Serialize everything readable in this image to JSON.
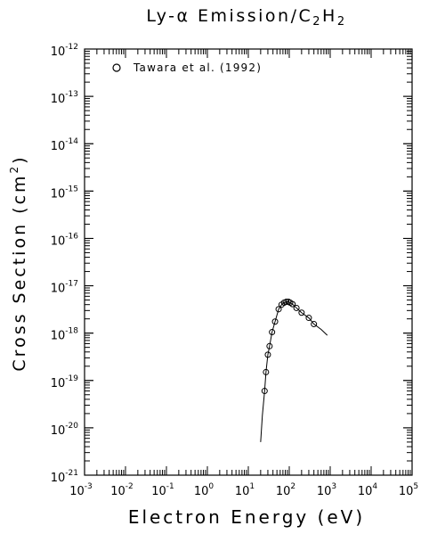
{
  "chart_data": {
    "type": "scatter",
    "title": {
      "base": "Ly-α Emission/C",
      "sub1": "2",
      "mid": "H",
      "sub2": "2"
    },
    "xlabel": "Electron Energy (eV)",
    "ylabel": {
      "text": "Cross Section (cm",
      "exp": "2",
      "close": ")"
    },
    "x_scale": "log",
    "y_scale": "log",
    "xlim": [
      0.001,
      100000
    ],
    "ylim": [
      1e-21,
      1e-12
    ],
    "x_ticks": [
      {
        "base": "10",
        "exp": "-3",
        "value": 0.001
      },
      {
        "base": "10",
        "exp": "-2",
        "value": 0.01
      },
      {
        "base": "10",
        "exp": "-1",
        "value": 0.1
      },
      {
        "base": "10",
        "exp": "0",
        "value": 1
      },
      {
        "base": "10",
        "exp": "1",
        "value": 10
      },
      {
        "base": "10",
        "exp": "2",
        "value": 100
      },
      {
        "base": "10",
        "exp": "3",
        "value": 1000
      },
      {
        "base": "10",
        "exp": "4",
        "value": 10000
      },
      {
        "base": "10",
        "exp": "5",
        "value": 100000
      }
    ],
    "y_ticks": [
      {
        "base": "10",
        "exp": "-21",
        "value": 1e-21
      },
      {
        "base": "10",
        "exp": "-20",
        "value": 1e-20
      },
      {
        "base": "10",
        "exp": "-19",
        "value": 1e-19
      },
      {
        "base": "10",
        "exp": "-18",
        "value": 1e-18
      },
      {
        "base": "10",
        "exp": "-17",
        "value": 1e-17
      },
      {
        "base": "10",
        "exp": "-16",
        "value": 1e-16
      },
      {
        "base": "10",
        "exp": "-15",
        "value": 1e-15
      },
      {
        "base": "10",
        "exp": "-14",
        "value": 1e-14
      },
      {
        "base": "10",
        "exp": "-13",
        "value": 1e-13
      },
      {
        "base": "10",
        "exp": "-12",
        "value": 1e-12
      }
    ],
    "legend": {
      "placement": "top-left",
      "entries": [
        {
          "marker": "circle",
          "label": "Tawara et al. (1992)"
        }
      ]
    },
    "series": [
      {
        "name": "Tawara et al. (1992)",
        "marker": "circle",
        "x": [
          25,
          27,
          30,
          33,
          38,
          45,
          55,
          65,
          75,
          85,
          95,
          105,
          120,
          150,
          200,
          300,
          400
        ],
        "y": [
          6e-20,
          1.5e-19,
          3.5e-19,
          5.3e-19,
          1.05e-18,
          1.75e-18,
          3.2e-18,
          4e-18,
          4.4e-18,
          4.6e-18,
          4.6e-18,
          4.4e-18,
          4.1e-18,
          3.4e-18,
          2.7e-18,
          2.1e-18,
          1.55e-18
        ]
      },
      {
        "name": "",
        "marker": "line",
        "x": [
          20,
          22,
          25,
          27,
          30,
          33,
          38,
          45,
          55,
          65,
          75,
          85,
          95,
          105,
          120,
          150,
          200,
          300,
          400,
          600,
          850
        ],
        "y": [
          5e-21,
          1.8e-20,
          6e-20,
          1.5e-19,
          3.5e-19,
          5.3e-19,
          1.05e-18,
          1.75e-18,
          3.2e-18,
          4e-18,
          4.4e-18,
          4.6e-18,
          4.6e-18,
          4.4e-18,
          4.1e-18,
          3.4e-18,
          2.7e-18,
          2.1e-18,
          1.55e-18,
          1.2e-18,
          9e-19
        ]
      }
    ],
    "grid": false
  }
}
